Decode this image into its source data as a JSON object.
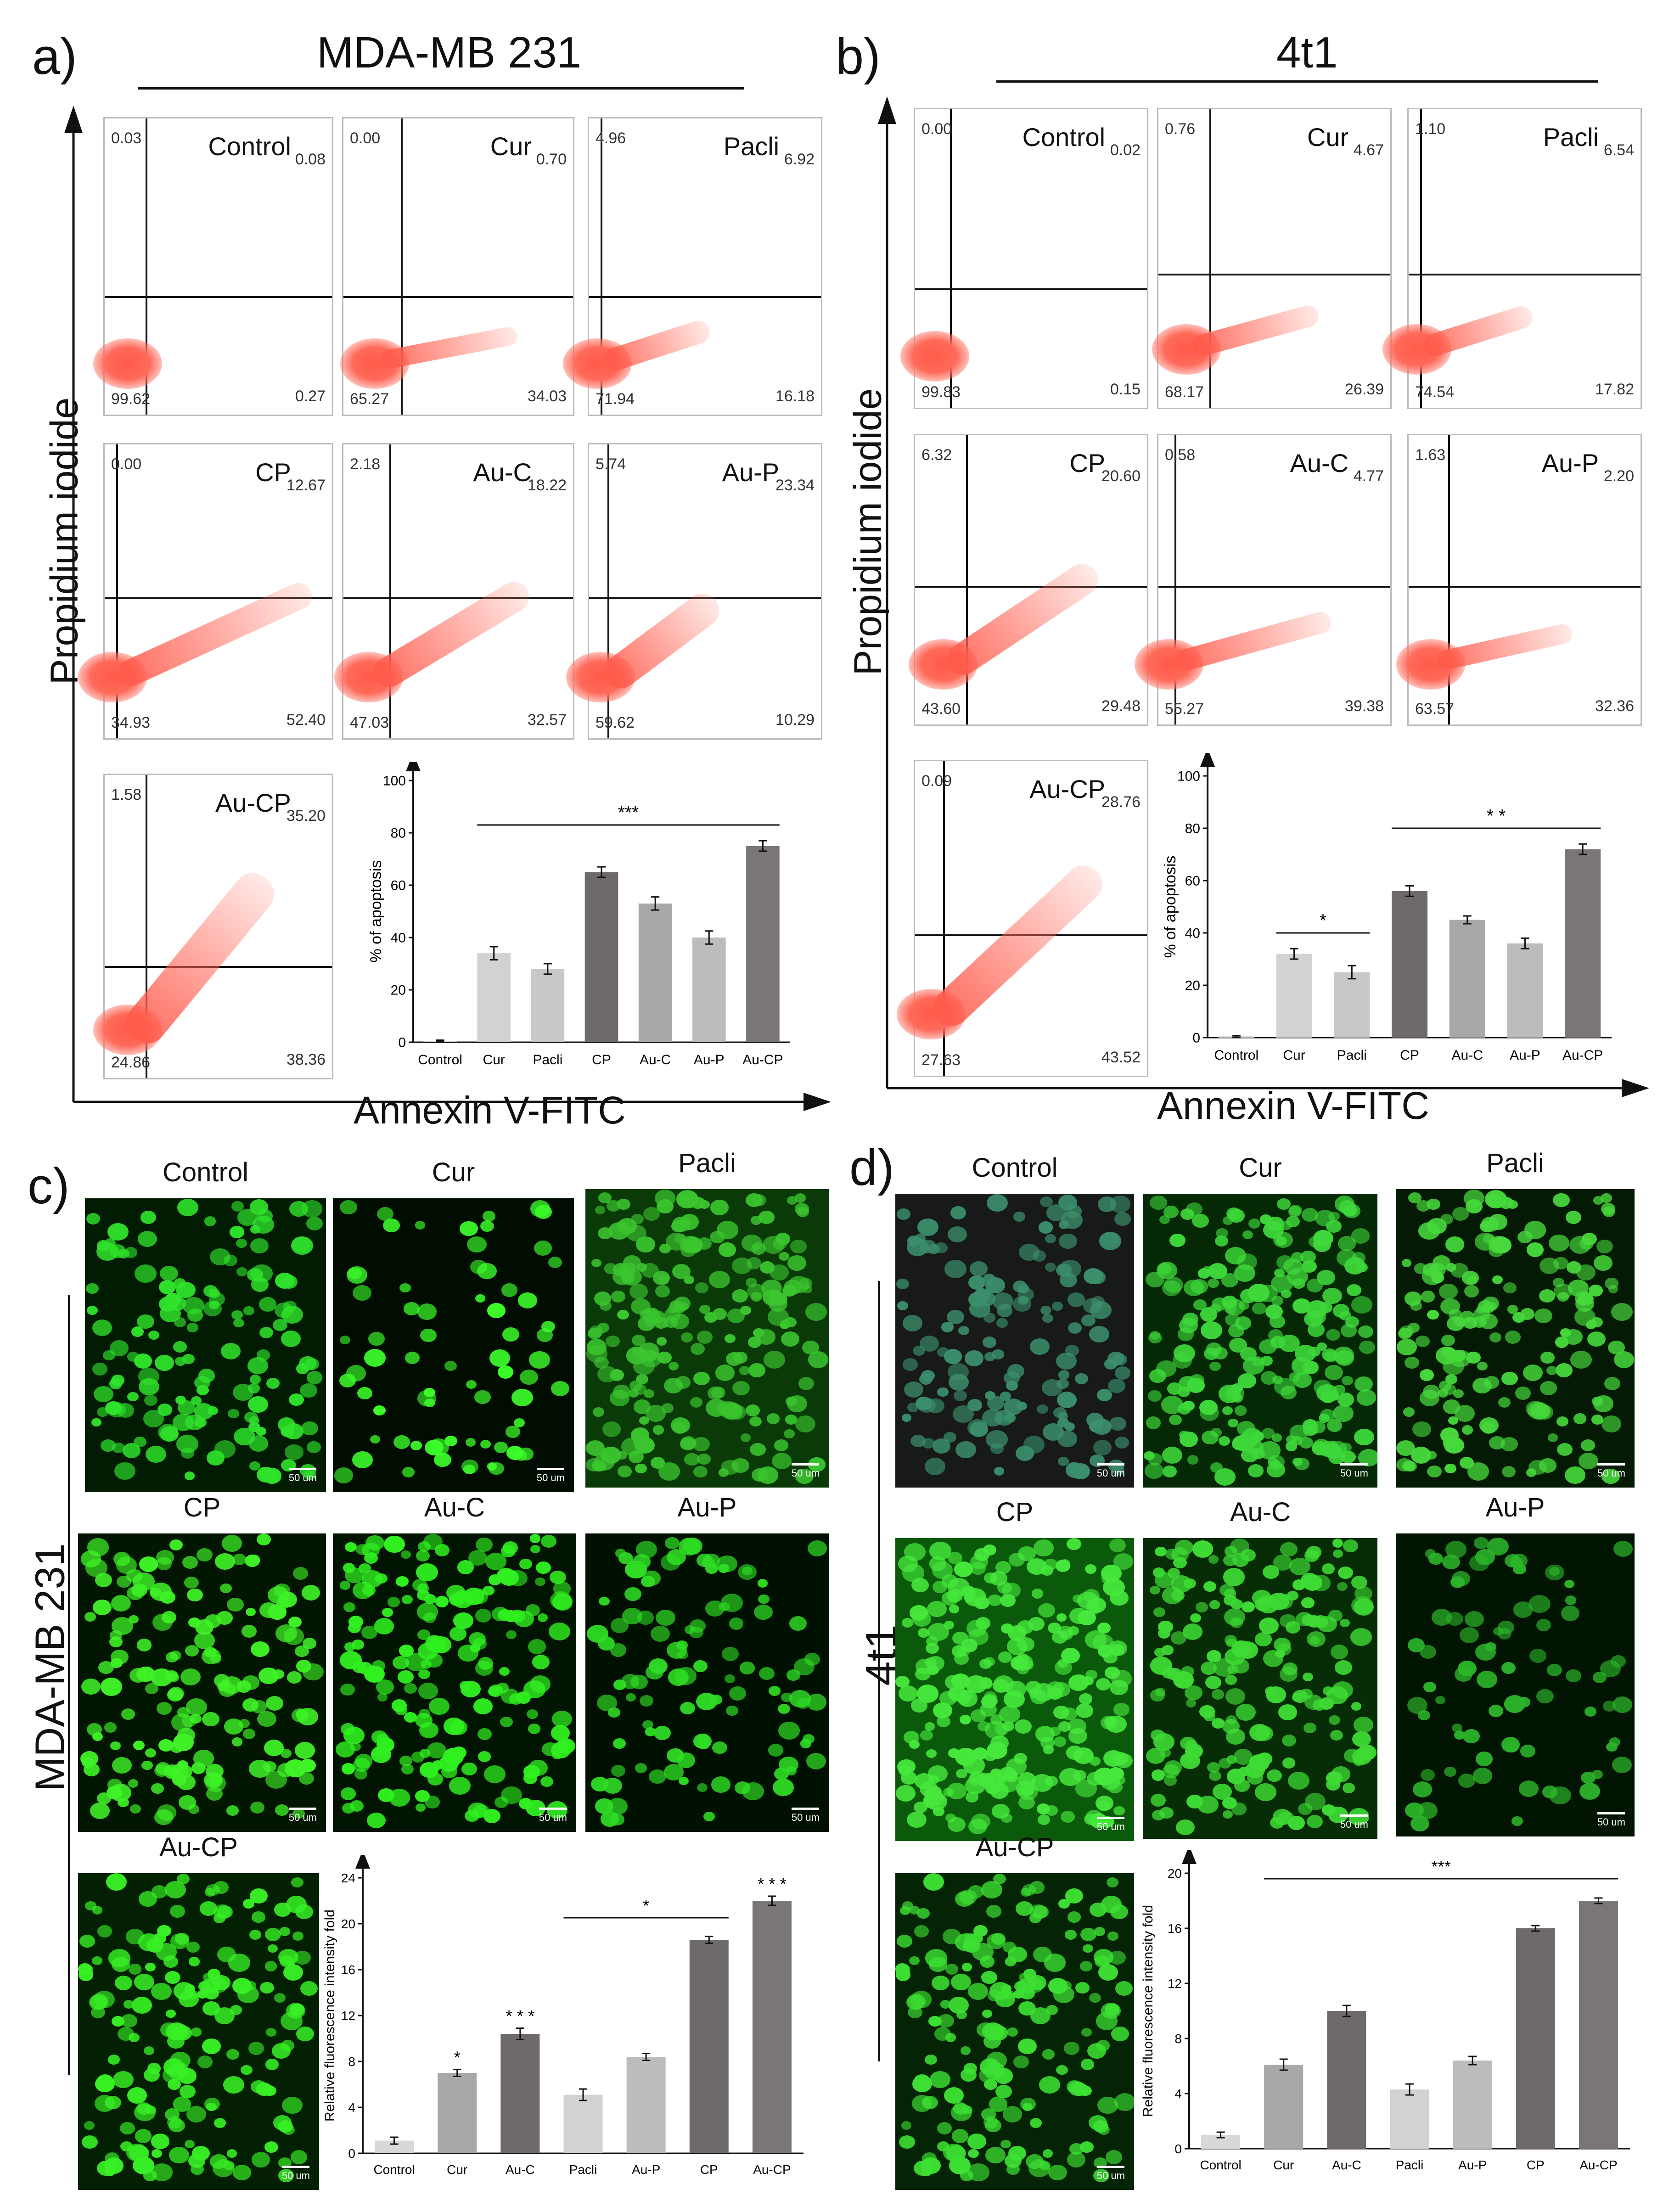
{
  "panels": {
    "a": {
      "label": "a)",
      "title": "MDA-MB 231",
      "ylabel": "Propidium iodide",
      "xlabel": "Annexin V-FITC"
    },
    "b": {
      "label": "b)",
      "title": "4t1",
      "ylabel": "Propidium iodide",
      "xlabel": "Annexin V-FITC"
    },
    "c": {
      "label": "c)",
      "side_label": "MDA-MB 231"
    },
    "d": {
      "label": "d)",
      "side_label": "4t1"
    }
  },
  "flow_a": [
    {
      "name": "Control",
      "ul": "0.03",
      "ur": "0.08",
      "ll": "99.62",
      "lr": "0.27"
    },
    {
      "name": "Cur",
      "ul": "0.00",
      "ur": "0.70",
      "ll": "65.27",
      "lr": "34.03"
    },
    {
      "name": "Pacli",
      "ul": "4.96",
      "ur": "6.92",
      "ll": "71.94",
      "lr": "16.18"
    },
    {
      "name": "CP",
      "ul": "0.00",
      "ur": "12.67",
      "ll": "34.93",
      "lr": "52.40"
    },
    {
      "name": "Au-C",
      "ul": "2.18",
      "ur": "18.22",
      "ll": "47.03",
      "lr": "32.57"
    },
    {
      "name": "Au-P",
      "ul": "5.74",
      "ur": "23.34",
      "ll": "59.62",
      "lr": "10.29"
    },
    {
      "name": "Au-CP",
      "ul": "1.58",
      "ur": "35.20",
      "ll": "24.86",
      "lr": "38.36"
    }
  ],
  "flow_b": [
    {
      "name": "Control",
      "ul": "0.00",
      "ur": "0.02",
      "ll": "99.83",
      "lr": "0.15"
    },
    {
      "name": "Cur",
      "ul": "0.76",
      "ur": "4.67",
      "ll": "68.17",
      "lr": "26.39"
    },
    {
      "name": "Pacli",
      "ul": "1.10",
      "ur": "6.54",
      "ll": "74.54",
      "lr": "17.82"
    },
    {
      "name": "CP",
      "ul": "6.32",
      "ur": "20.60",
      "ll": "43.60",
      "lr": "29.48"
    },
    {
      "name": "Au-C",
      "ul": "0.58",
      "ur": "4.77",
      "ll": "55.27",
      "lr": "39.38"
    },
    {
      "name": "Au-P",
      "ul": "1.63",
      "ur": "2.20",
      "ll": "63.57",
      "lr": "32.36"
    },
    {
      "name": "Au-CP",
      "ul": "0.09",
      "ur": "28.76",
      "ll": "27.63",
      "lr": "43.52"
    }
  ],
  "micro_c": [
    "Control",
    "Cur",
    "Pacli",
    "CP",
    "Au-C",
    "Au-P",
    "Au-CP"
  ],
  "micro_d": [
    "Control",
    "Cur",
    "Pacli",
    "CP",
    "Au-C",
    "Au-P",
    "Au-CP"
  ],
  "scale_bar": "50 um",
  "chart_data": [
    {
      "type": "bar",
      "panel": "a",
      "categories": [
        "Control",
        "Cur",
        "Pacli",
        "CP",
        "Au-C",
        "Au-P",
        "Au-CP"
      ],
      "values": [
        0.5,
        34,
        28,
        65,
        53,
        40,
        75
      ],
      "errors": [
        0.3,
        2.5,
        2,
        2,
        2.5,
        2.5,
        2
      ],
      "colors": [
        "#d8d8d8",
        "#d2d2d2",
        "#c8c8c8",
        "#6e6a6b",
        "#a9a7a8",
        "#bdbbbc",
        "#7a7677"
      ],
      "ylabel": "% of apoptosis",
      "ylim": [
        0,
        100
      ],
      "yticks": [
        0,
        20,
        40,
        60,
        80,
        100
      ],
      "annotations": [
        {
          "text": "***",
          "from": "Cur",
          "to": "Au-CP"
        }
      ]
    },
    {
      "type": "bar",
      "panel": "b",
      "categories": [
        "Control",
        "Cur",
        "Pacli",
        "CP",
        "Au-C",
        "Au-P",
        "Au-CP"
      ],
      "values": [
        0.5,
        32,
        25,
        56,
        45,
        36,
        72
      ],
      "errors": [
        0.3,
        2,
        2.5,
        2,
        1.5,
        2,
        2
      ],
      "colors": [
        "#d8d8d8",
        "#d2d2d2",
        "#c8c8c8",
        "#6e6a6b",
        "#a9a7a8",
        "#bdbbbc",
        "#7a7677"
      ],
      "ylabel": "% of apoptosis",
      "ylim": [
        0,
        100
      ],
      "yticks": [
        0,
        20,
        40,
        60,
        80,
        100
      ],
      "annotations": [
        {
          "text": "*",
          "from": "Cur",
          "to": "Pacli"
        },
        {
          "text": "* *",
          "from": "CP",
          "to": "Au-CP"
        }
      ]
    },
    {
      "type": "bar",
      "panel": "c",
      "categories": [
        "Control",
        "Cur",
        "Au-C",
        "Pacli",
        "Au-P",
        "CP",
        "Au-CP"
      ],
      "values": [
        1.1,
        7,
        10.4,
        5.1,
        8.4,
        18.6,
        22
      ],
      "errors": [
        0.3,
        0.3,
        0.5,
        0.5,
        0.3,
        0.3,
        0.4
      ],
      "colors": [
        "#d8d8d8",
        "#a9a7a8",
        "#6e6a6b",
        "#d2d2d2",
        "#bdbbbc",
        "#6e6a6b",
        "#7a7677"
      ],
      "ylabel": "Relative fluorescence intensity fold",
      "ylim": [
        0,
        24
      ],
      "yticks": [
        0,
        4,
        8,
        12,
        16,
        20,
        24
      ],
      "bar_marks": {
        "Cur": "*",
        "Au-C": "* * *",
        "Au-CP": "* * *"
      },
      "annotations": [
        {
          "text": "*",
          "from": "Pacli",
          "to": "CP"
        }
      ]
    },
    {
      "type": "bar",
      "panel": "d",
      "categories": [
        "Control",
        "Cur",
        "Au-C",
        "Pacli",
        "Au-P",
        "CP",
        "Au-CP"
      ],
      "values": [
        1,
        6.1,
        10,
        4.3,
        6.4,
        16,
        18
      ],
      "errors": [
        0.2,
        0.4,
        0.4,
        0.4,
        0.3,
        0.2,
        0.2
      ],
      "colors": [
        "#d8d8d8",
        "#a9a7a8",
        "#6e6a6b",
        "#d2d2d2",
        "#bdbbbc",
        "#6e6a6b",
        "#7a7677"
      ],
      "ylabel": "Relative fluorescence intensity fold",
      "ylim": [
        0,
        20
      ],
      "yticks": [
        0,
        4,
        8,
        12,
        16,
        20
      ],
      "annotations": [
        {
          "text": "***",
          "from": "Cur",
          "to": "Au-CP"
        }
      ]
    }
  ]
}
